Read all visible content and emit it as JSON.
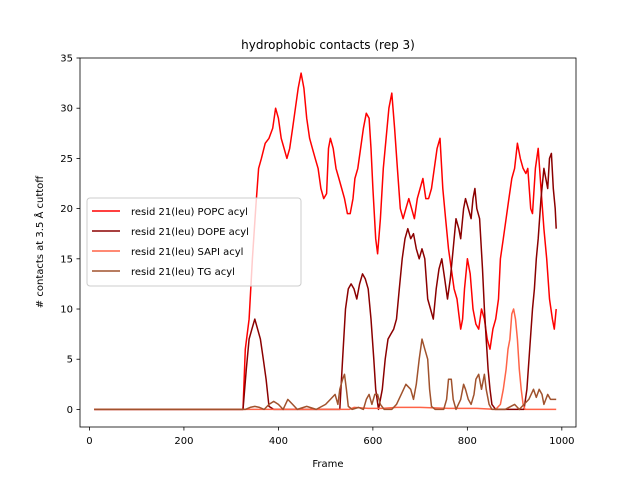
{
  "chart_data": {
    "type": "line",
    "title": "hydrophobic contacts (rep 3)",
    "xlabel": "Frame",
    "ylabel": "# contacts at 3.5 Å cuttoff",
    "xlim": [
      -20,
      1030
    ],
    "ylim": [
      -1.75,
      35
    ],
    "xticks": [
      0,
      200,
      400,
      600,
      800,
      1000
    ],
    "yticks": [
      0,
      5,
      10,
      15,
      20,
      25,
      30,
      35
    ],
    "grid": false,
    "legend_position": "center-left",
    "series": [
      {
        "name": "resid 21(leu) POPC acyl",
        "color": "#ff0000",
        "points": [
          [
            10,
            0
          ],
          [
            325,
            0
          ],
          [
            330,
            6
          ],
          [
            338,
            9
          ],
          [
            345,
            15
          ],
          [
            352,
            20
          ],
          [
            358,
            24
          ],
          [
            364,
            25
          ],
          [
            372,
            26.5
          ],
          [
            380,
            27
          ],
          [
            388,
            28
          ],
          [
            394,
            30
          ],
          [
            400,
            29
          ],
          [
            406,
            27
          ],
          [
            412,
            26
          ],
          [
            418,
            25
          ],
          [
            424,
            26
          ],
          [
            430,
            28
          ],
          [
            436,
            30
          ],
          [
            442,
            32
          ],
          [
            448,
            33.5
          ],
          [
            454,
            32
          ],
          [
            460,
            29
          ],
          [
            466,
            27
          ],
          [
            472,
            26
          ],
          [
            478,
            25
          ],
          [
            484,
            24
          ],
          [
            490,
            22
          ],
          [
            496,
            21
          ],
          [
            502,
            21.5
          ],
          [
            506,
            26
          ],
          [
            510,
            27
          ],
          [
            516,
            26
          ],
          [
            522,
            24
          ],
          [
            528,
            23
          ],
          [
            534,
            22
          ],
          [
            540,
            21
          ],
          [
            546,
            19.5
          ],
          [
            552,
            19.5
          ],
          [
            558,
            21
          ],
          [
            562,
            23
          ],
          [
            568,
            24
          ],
          [
            574,
            26
          ],
          [
            580,
            28
          ],
          [
            586,
            29.5
          ],
          [
            592,
            29
          ],
          [
            596,
            26
          ],
          [
            600,
            22
          ],
          [
            606,
            17
          ],
          [
            610,
            15.5
          ],
          [
            616,
            19
          ],
          [
            622,
            24
          ],
          [
            628,
            27
          ],
          [
            634,
            30
          ],
          [
            640,
            31.5
          ],
          [
            646,
            28
          ],
          [
            652,
            24
          ],
          [
            658,
            20
          ],
          [
            664,
            19
          ],
          [
            670,
            20
          ],
          [
            676,
            21
          ],
          [
            682,
            20
          ],
          [
            688,
            19
          ],
          [
            694,
            21
          ],
          [
            700,
            22
          ],
          [
            706,
            23
          ],
          [
            712,
            21
          ],
          [
            718,
            21
          ],
          [
            724,
            22
          ],
          [
            730,
            24
          ],
          [
            736,
            26
          ],
          [
            742,
            27
          ],
          [
            748,
            22
          ],
          [
            754,
            19
          ],
          [
            760,
            16
          ],
          [
            766,
            14
          ],
          [
            772,
            12
          ],
          [
            778,
            11
          ],
          [
            782,
            9.5
          ],
          [
            786,
            8
          ],
          [
            790,
            9
          ],
          [
            794,
            12
          ],
          [
            800,
            15
          ],
          [
            806,
            13.5
          ],
          [
            812,
            10
          ],
          [
            818,
            8.5
          ],
          [
            824,
            8
          ],
          [
            830,
            10
          ],
          [
            836,
            9
          ],
          [
            842,
            7
          ],
          [
            848,
            6
          ],
          [
            854,
            8
          ],
          [
            860,
            9
          ],
          [
            866,
            11
          ],
          [
            870,
            15
          ],
          [
            876,
            17
          ],
          [
            882,
            19
          ],
          [
            888,
            21
          ],
          [
            894,
            23
          ],
          [
            900,
            24
          ],
          [
            906,
            26.5
          ],
          [
            912,
            25
          ],
          [
            918,
            24
          ],
          [
            924,
            23.5
          ],
          [
            928,
            24
          ],
          [
            934,
            20
          ],
          [
            938,
            19.5
          ],
          [
            944,
            24
          ],
          [
            950,
            26
          ],
          [
            956,
            22
          ],
          [
            962,
            18
          ],
          [
            968,
            15
          ],
          [
            974,
            11
          ],
          [
            980,
            9
          ],
          [
            984,
            8
          ],
          [
            988,
            10
          ]
        ]
      },
      {
        "name": "resid 21(leu) DOPE acyl",
        "color": "#8b0000",
        "points": [
          [
            10,
            0
          ],
          [
            325,
            0
          ],
          [
            332,
            4
          ],
          [
            338,
            7
          ],
          [
            344,
            8
          ],
          [
            350,
            9
          ],
          [
            356,
            8
          ],
          [
            362,
            7
          ],
          [
            368,
            5
          ],
          [
            374,
            3
          ],
          [
            380,
            0.3
          ],
          [
            390,
            0
          ],
          [
            530,
            0
          ],
          [
            536,
            5
          ],
          [
            542,
            10
          ],
          [
            548,
            12
          ],
          [
            554,
            12.5
          ],
          [
            560,
            12
          ],
          [
            566,
            11
          ],
          [
            572,
            12.5
          ],
          [
            578,
            13.5
          ],
          [
            584,
            13
          ],
          [
            590,
            12
          ],
          [
            596,
            9
          ],
          [
            602,
            5
          ],
          [
            606,
            2
          ],
          [
            612,
            0
          ],
          [
            620,
            2
          ],
          [
            626,
            5
          ],
          [
            632,
            7
          ],
          [
            638,
            7.5
          ],
          [
            644,
            8
          ],
          [
            650,
            9
          ],
          [
            656,
            12
          ],
          [
            662,
            15
          ],
          [
            668,
            17
          ],
          [
            674,
            18
          ],
          [
            680,
            17
          ],
          [
            686,
            17.5
          ],
          [
            692,
            16
          ],
          [
            698,
            15
          ],
          [
            704,
            16
          ],
          [
            710,
            15
          ],
          [
            716,
            11
          ],
          [
            722,
            10
          ],
          [
            728,
            9
          ],
          [
            734,
            12
          ],
          [
            740,
            14
          ],
          [
            746,
            15
          ],
          [
            752,
            13
          ],
          [
            758,
            11
          ],
          [
            764,
            13
          ],
          [
            770,
            16
          ],
          [
            776,
            19
          ],
          [
            782,
            18
          ],
          [
            786,
            17
          ],
          [
            792,
            20
          ],
          [
            796,
            21
          ],
          [
            802,
            20
          ],
          [
            808,
            19
          ],
          [
            812,
            21
          ],
          [
            816,
            22
          ],
          [
            820,
            20
          ],
          [
            826,
            19
          ],
          [
            832,
            14
          ],
          [
            836,
            10
          ],
          [
            840,
            7
          ],
          [
            844,
            4
          ],
          [
            848,
            2
          ],
          [
            852,
            0.5
          ],
          [
            860,
            0
          ],
          [
            920,
            0
          ],
          [
            926,
            2
          ],
          [
            932,
            6
          ],
          [
            938,
            10
          ],
          [
            942,
            12
          ],
          [
            946,
            15
          ],
          [
            950,
            17
          ],
          [
            956,
            21
          ],
          [
            962,
            24
          ],
          [
            966,
            23
          ],
          [
            970,
            22
          ],
          [
            974,
            25
          ],
          [
            978,
            25.5
          ],
          [
            982,
            22
          ],
          [
            986,
            20
          ],
          [
            988,
            18
          ]
        ]
      },
      {
        "name": "resid 21(leu) SAPI acyl",
        "color": "#ff6347",
        "points": [
          [
            10,
            0
          ],
          [
            550,
            0
          ],
          [
            560,
            0.2
          ],
          [
            590,
            0.1
          ],
          [
            620,
            0.1
          ],
          [
            650,
            0.2
          ],
          [
            700,
            0.2
          ],
          [
            760,
            0.1
          ],
          [
            820,
            0.1
          ],
          [
            860,
            0
          ],
          [
            870,
            0.5
          ],
          [
            876,
            2
          ],
          [
            882,
            4
          ],
          [
            886,
            6
          ],
          [
            890,
            7
          ],
          [
            894,
            9.5
          ],
          [
            898,
            10
          ],
          [
            902,
            9
          ],
          [
            906,
            7
          ],
          [
            910,
            4
          ],
          [
            914,
            2
          ],
          [
            918,
            0.5
          ],
          [
            922,
            0
          ],
          [
            988,
            0
          ]
        ]
      },
      {
        "name": "resid 21(leu) TG acyl",
        "color": "#a0522d",
        "points": [
          [
            10,
            0
          ],
          [
            330,
            0
          ],
          [
            340,
            0.2
          ],
          [
            350,
            0.3
          ],
          [
            360,
            0.2
          ],
          [
            370,
            0
          ],
          [
            380,
            0.5
          ],
          [
            390,
            0.8
          ],
          [
            400,
            0.5
          ],
          [
            410,
            0
          ],
          [
            420,
            1
          ],
          [
            430,
            0.5
          ],
          [
            440,
            0
          ],
          [
            460,
            0.3
          ],
          [
            480,
            0
          ],
          [
            500,
            0.5
          ],
          [
            510,
            1
          ],
          [
            520,
            1.5
          ],
          [
            526,
            0.5
          ],
          [
            530,
            2
          ],
          [
            536,
            3
          ],
          [
            540,
            3.5
          ],
          [
            544,
            2
          ],
          [
            548,
            0.3
          ],
          [
            556,
            0
          ],
          [
            570,
            0.2
          ],
          [
            580,
            0
          ],
          [
            586,
            1
          ],
          [
            592,
            1.5
          ],
          [
            598,
            0.5
          ],
          [
            604,
            1.5
          ],
          [
            610,
            1.5
          ],
          [
            616,
            0.5
          ],
          [
            624,
            0
          ],
          [
            640,
            0
          ],
          [
            650,
            0.5
          ],
          [
            660,
            1.5
          ],
          [
            670,
            2.5
          ],
          [
            680,
            2
          ],
          [
            686,
            1
          ],
          [
            692,
            2.5
          ],
          [
            698,
            5
          ],
          [
            704,
            7
          ],
          [
            710,
            6
          ],
          [
            716,
            5
          ],
          [
            720,
            2
          ],
          [
            724,
            0.3
          ],
          [
            732,
            0
          ],
          [
            750,
            0
          ],
          [
            756,
            1
          ],
          [
            760,
            3
          ],
          [
            766,
            3
          ],
          [
            770,
            1
          ],
          [
            776,
            0
          ],
          [
            786,
            1
          ],
          [
            792,
            2.5
          ],
          [
            796,
            2
          ],
          [
            802,
            1
          ],
          [
            808,
            0.5
          ],
          [
            814,
            1.5
          ],
          [
            818,
            3
          ],
          [
            824,
            3.5
          ],
          [
            830,
            2
          ],
          [
            836,
            3.5
          ],
          [
            840,
            2
          ],
          [
            846,
            0.5
          ],
          [
            852,
            0
          ],
          [
            880,
            0
          ],
          [
            900,
            0.5
          ],
          [
            910,
            0
          ],
          [
            920,
            0.5
          ],
          [
            930,
            1
          ],
          [
            940,
            2
          ],
          [
            946,
            1.2
          ],
          [
            952,
            2
          ],
          [
            958,
            1.5
          ],
          [
            962,
            0.5
          ],
          [
            966,
            1
          ],
          [
            970,
            1.5
          ],
          [
            976,
            1
          ],
          [
            982,
            1
          ],
          [
            988,
            1
          ]
        ]
      }
    ]
  }
}
